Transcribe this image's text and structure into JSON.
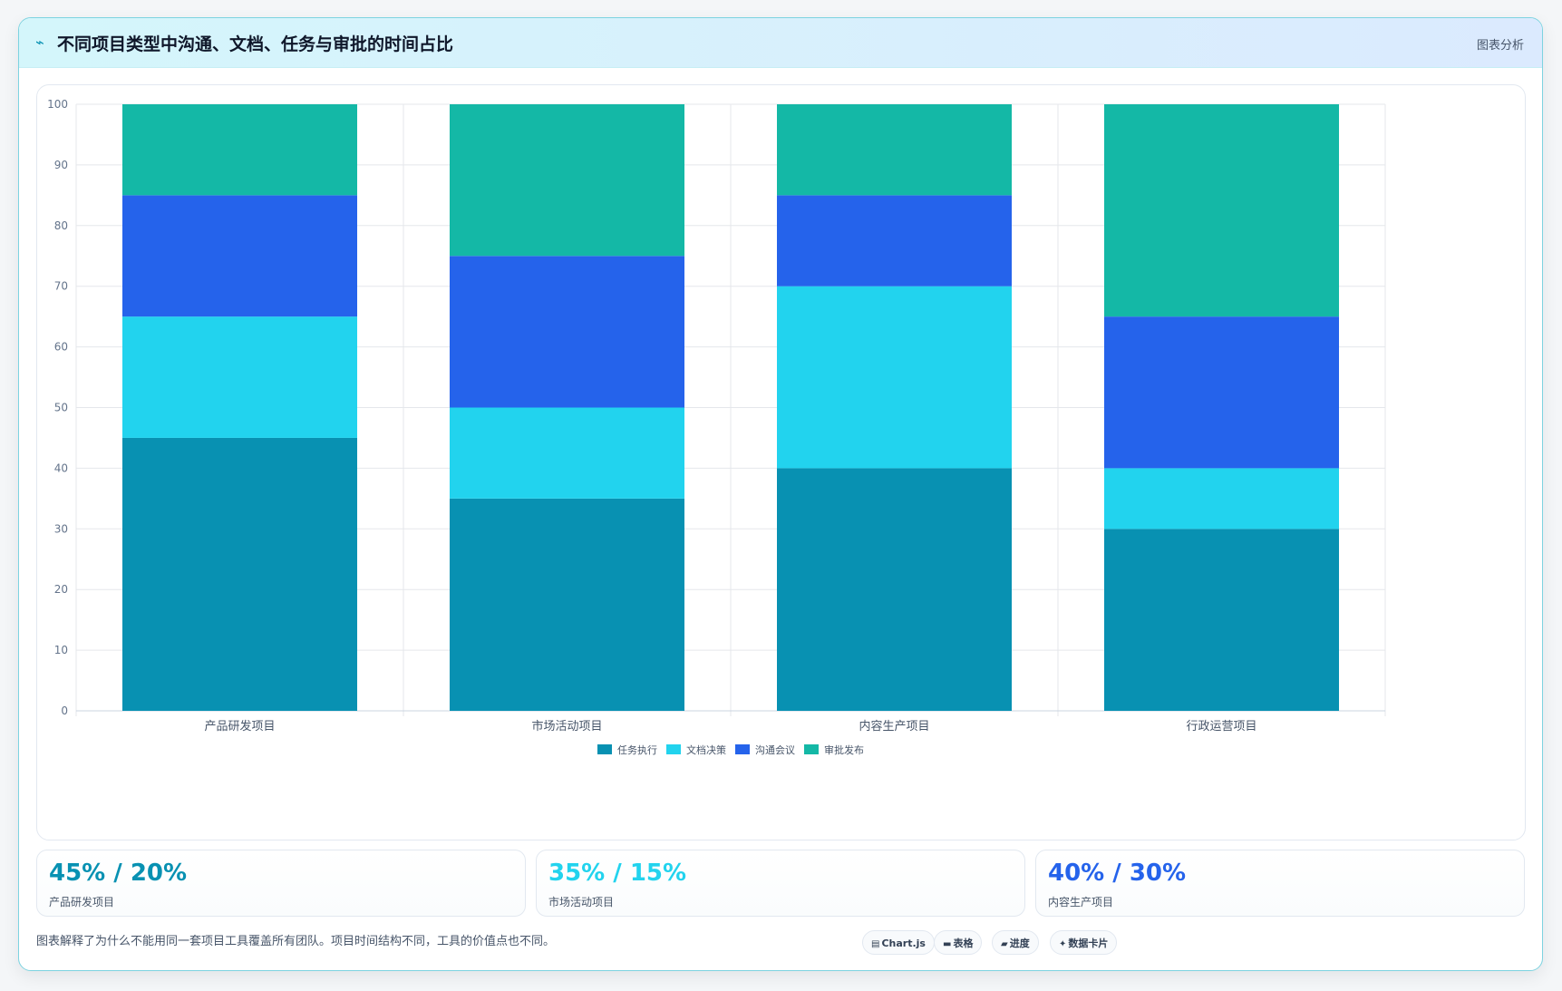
{
  "header": {
    "icon": "sparkline-icon",
    "title": "不同项目类型中沟通、文档、任务与审批的时间占比",
    "tag": "图表分析"
  },
  "chart_data": {
    "type": "bar",
    "stacked": true,
    "categories": [
      "产品研发项目",
      "市场活动项目",
      "内容生产项目",
      "行政运营项目"
    ],
    "series": [
      {
        "name": "任务执行",
        "color": "#0891b2",
        "values": [
          45,
          35,
          40,
          30
        ]
      },
      {
        "name": "文档决策",
        "color": "#22d3ee",
        "values": [
          20,
          15,
          30,
          10
        ]
      },
      {
        "name": "沟通会议",
        "color": "#2563eb",
        "values": [
          20,
          25,
          15,
          25
        ]
      },
      {
        "name": "审批发布",
        "color": "#14b8a6",
        "values": [
          15,
          25,
          15,
          35
        ]
      }
    ],
    "ylim": [
      0,
      100
    ],
    "yticks": [
      0,
      10,
      20,
      30,
      40,
      50,
      60,
      70,
      80,
      90,
      100
    ],
    "grid": true,
    "legend": "bottom"
  },
  "stats": [
    {
      "value": "45% / 20%",
      "label": "产品研发项目",
      "color": "#0891b2"
    },
    {
      "value": "35% / 15%",
      "label": "市场活动项目",
      "color": "#22d3ee"
    },
    {
      "value": "40% / 30%",
      "label": "内容生产项目",
      "color": "#2563eb"
    }
  ],
  "footer": {
    "text": "图表解释了为什么不能用同一套项目工具覆盖所有团队。项目时间结构不同，工具的价值点也不同。",
    "chips": [
      {
        "icon": "chart-icon",
        "glyph": "▤",
        "label": "Chart.js"
      },
      {
        "icon": "table-icon",
        "glyph": "▬",
        "label": "表格"
      },
      {
        "icon": "progress-icon",
        "glyph": "▰",
        "label": "进度"
      },
      {
        "icon": "sparkle-icon",
        "glyph": "✦",
        "label": "数据卡片"
      }
    ]
  }
}
